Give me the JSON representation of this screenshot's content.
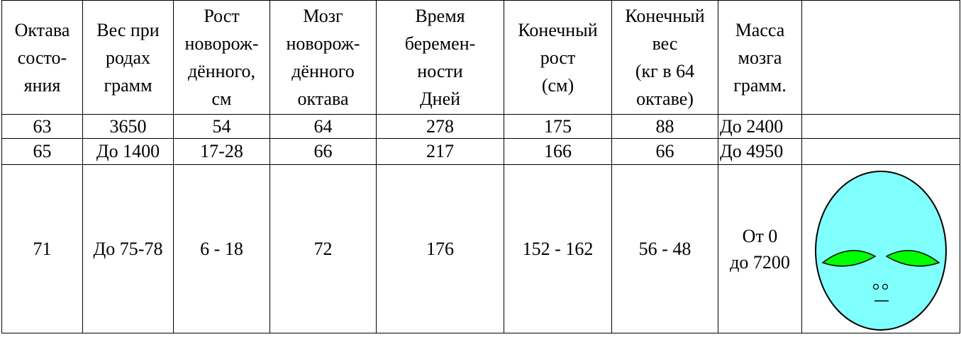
{
  "table": {
    "header": [
      [
        "Октава",
        "состо-",
        "яния"
      ],
      [
        "Вес при",
        "родах",
        "грамм"
      ],
      [
        "Рост",
        "новорож-",
        "дённого,",
        "см"
      ],
      [
        "Мозг",
        "новорож-",
        "дённого",
        "октава"
      ],
      [
        "Время",
        "беремен-",
        "ности",
        "Дней"
      ],
      [
        "Конечный",
        "рост",
        "(см)"
      ],
      [
        "Конечный",
        "вес",
        "(кг в 64",
        "октаве)"
      ],
      [
        "Масса",
        "мозга",
        "грамм."
      ]
    ],
    "rows": [
      [
        [
          "63"
        ],
        [
          "3650"
        ],
        [
          "54"
        ],
        [
          "64"
        ],
        [
          "278"
        ],
        [
          "175"
        ],
        [
          "88"
        ],
        [
          "До 2400"
        ]
      ],
      [
        [
          "65"
        ],
        [
          "До 1400"
        ],
        [
          "17-28"
        ],
        [
          "66"
        ],
        [
          "217"
        ],
        [
          "166"
        ],
        [
          "66"
        ],
        [
          "До 4950"
        ]
      ],
      [
        [
          "71"
        ],
        [
          "До 75-78"
        ],
        [
          "6 - 18"
        ],
        [
          "72"
        ],
        [
          "176"
        ],
        [
          "152 - 162"
        ],
        [
          "56 - 48"
        ],
        [
          "От 0",
          "до 7200"
        ]
      ]
    ]
  }
}
